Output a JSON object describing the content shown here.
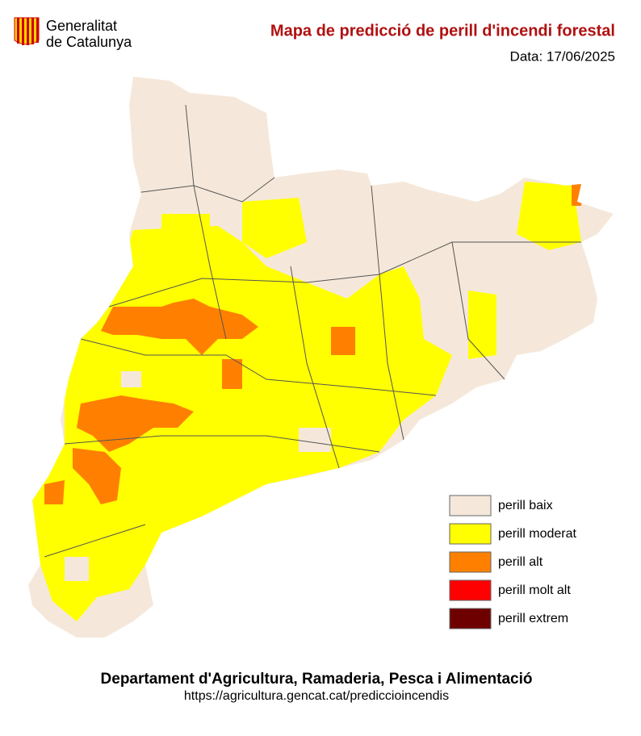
{
  "header": {
    "logo_line1": "Generalitat",
    "logo_line2": "de Catalunya",
    "title": "Mapa de predicció de perill d'incendi forestal",
    "date": "Data: 17/06/2025"
  },
  "legend": [
    {
      "label": "perill baix",
      "color": "#f5e8da"
    },
    {
      "label": "perill moderat",
      "color": "#ffff00"
    },
    {
      "label": "perill alt",
      "color": "#ff8000"
    },
    {
      "label": "perill molt alt",
      "color": "#ff0000"
    },
    {
      "label": "perill extrem",
      "color": "#6e0000"
    }
  ],
  "footer": {
    "department": "Departament d'Agricultura, Ramaderia, Pesca i Alimentació",
    "url": "https://agricultura.gencat.cat/prediccioincendis"
  }
}
